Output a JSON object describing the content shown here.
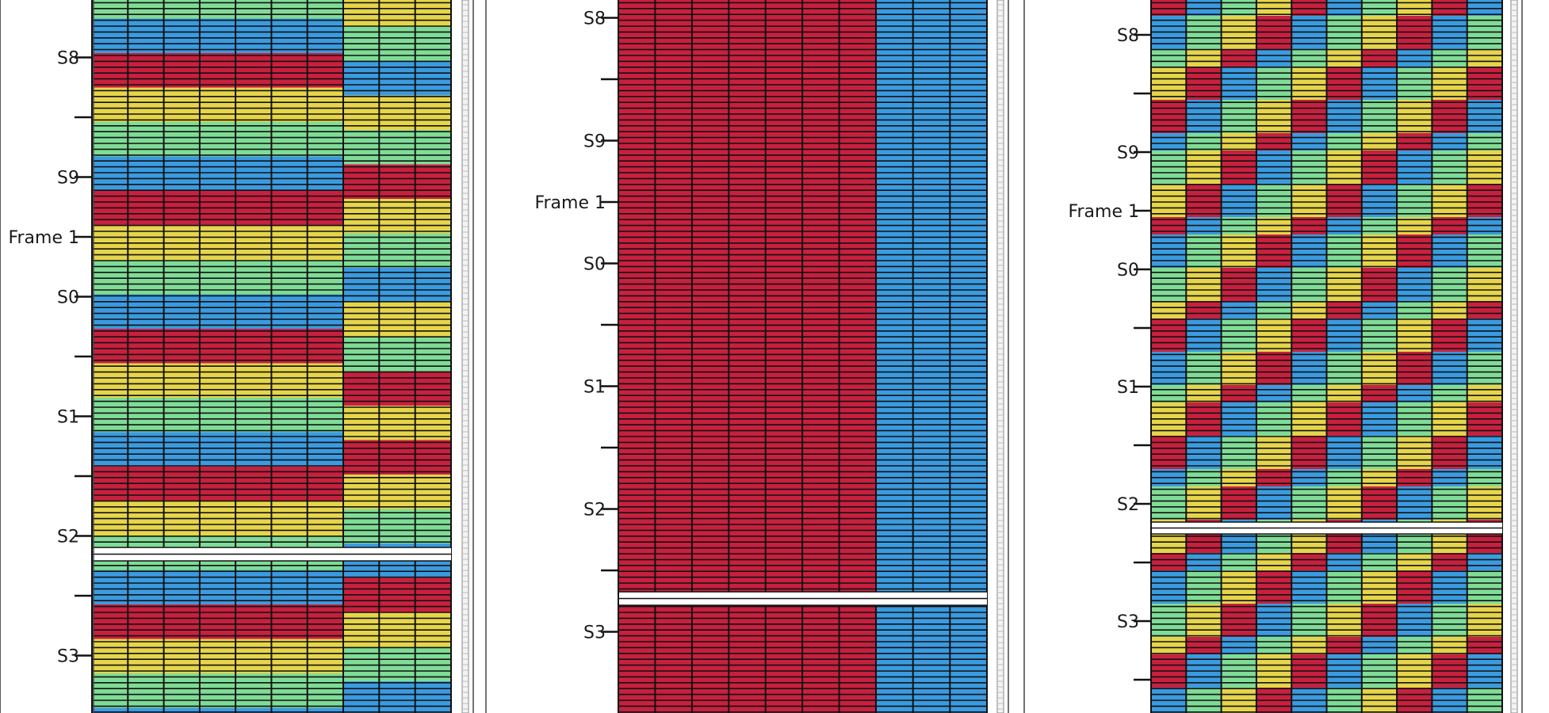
{
  "colors": {
    "red": "#c8203f",
    "blue": "#3a9be0",
    "green": "#7fdc96",
    "yellow": "#e6d54a",
    "white": "#ffffff",
    "line": "#111111",
    "frame": "#444444"
  },
  "panels": [
    {
      "id": "left",
      "ticks": [
        "",
        "S8",
        "",
        "S9",
        "Frame 1",
        "S0",
        "",
        "S1",
        "",
        "S2",
        "",
        "S3",
        ""
      ],
      "pattern": "band-rows",
      "main_cols": 7,
      "side_cols": 3,
      "main_sequence": [
        "green",
        "blue",
        "red",
        "yellow"
      ],
      "side_sequence": [
        "yellow",
        "green",
        "blue",
        "yellow",
        "green",
        "red",
        "yellow",
        "green",
        "blue",
        "yellow",
        "green",
        "red",
        "yellow",
        "red",
        "yellow",
        "green",
        "blue",
        "red"
      ]
    },
    {
      "id": "middle",
      "ticks": [
        "",
        "S8",
        "",
        "S9",
        "Frame 1",
        "S0",
        "",
        "S1",
        "",
        "S2",
        "",
        "S3"
      ],
      "pattern": "solid-columns",
      "main_cols": 7,
      "side_cols": 3,
      "main_color": "red",
      "side_color": "blue"
    },
    {
      "id": "right",
      "ticks": [
        "S8",
        "",
        "S9",
        "Frame 1",
        "S0",
        "",
        "S1",
        "",
        "S2",
        "",
        "S3",
        ""
      ],
      "pattern": "checker",
      "cols": 10,
      "col_cycle": [
        "red",
        "blue",
        "green",
        "yellow"
      ]
    }
  ]
}
